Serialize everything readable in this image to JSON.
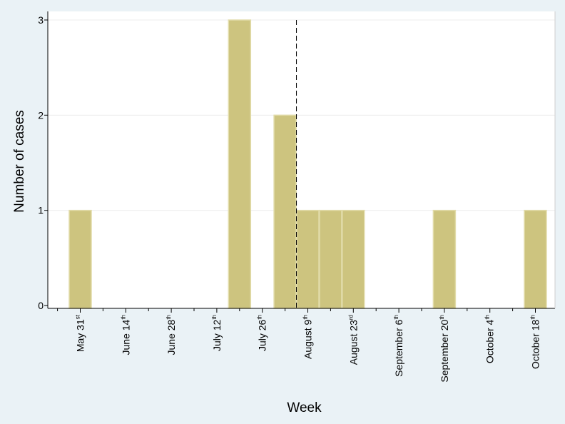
{
  "chart_data": {
    "type": "bar",
    "xlabel": "Week",
    "ylabel": "Number of cases",
    "ylim": [
      0,
      3
    ],
    "yticks": [
      "0",
      "1",
      "2",
      "3"
    ],
    "grid": true,
    "bar_color": "#cdc47f",
    "bar_edge_color": "#e2dcaa",
    "ref_line_color": "#000000",
    "ref_line_style": "dashed",
    "xticks": [
      {
        "week": 0,
        "main": "May 31",
        "sup": "st"
      },
      {
        "week": 2,
        "main": "June 14",
        "sup": "th"
      },
      {
        "week": 4,
        "main": "June 28",
        "sup": "th"
      },
      {
        "week": 6,
        "main": "July 12",
        "sup": "th"
      },
      {
        "week": 8,
        "main": "July 26",
        "sup": "th"
      },
      {
        "week": 10,
        "main": "August 9",
        "sup": "th"
      },
      {
        "week": 12,
        "main": "August 23",
        "sup": "rd"
      },
      {
        "week": 14,
        "main": "September 6",
        "sup": "th"
      },
      {
        "week": 16,
        "main": "September 20",
        "sup": "th"
      },
      {
        "week": 18,
        "main": "October 4",
        "sup": "th"
      },
      {
        "week": 20,
        "main": "October 18",
        "sup": "th"
      }
    ],
    "bars": [
      {
        "week": 0,
        "value": 1
      },
      {
        "week": 7,
        "value": 3
      },
      {
        "week": 9,
        "value": 2
      },
      {
        "week": 10,
        "value": 1
      },
      {
        "week": 11,
        "value": 1
      },
      {
        "week": 12,
        "value": 1
      },
      {
        "week": 16,
        "value": 1
      },
      {
        "week": 20,
        "value": 1
      }
    ],
    "reference_line_week": 9.5
  }
}
